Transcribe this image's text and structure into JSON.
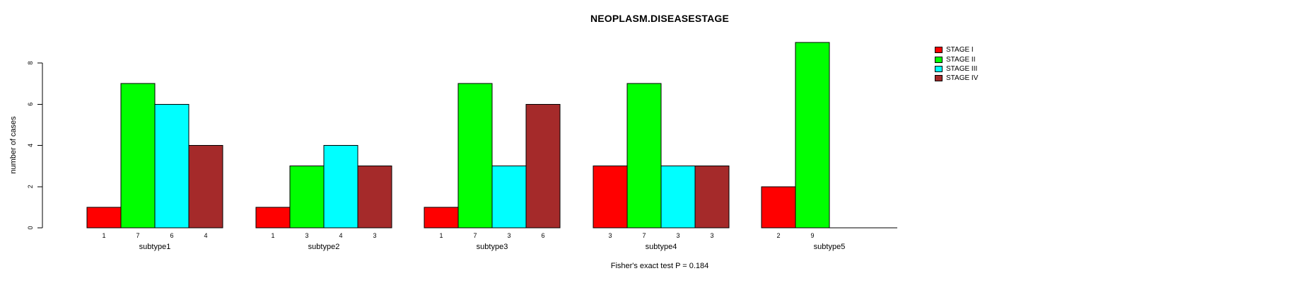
{
  "chart_data": {
    "type": "bar",
    "title": "NEOPLASM.DISEASESTAGE",
    "ylabel": "number of cases",
    "xlabel": "",
    "footnote": "Fisher's exact test P = 0.184",
    "categories": [
      "subtype1",
      "subtype2",
      "subtype3",
      "subtype4",
      "subtype5"
    ],
    "series": [
      {
        "name": "STAGE I",
        "color": "#FF0000",
        "values": [
          1,
          1,
          1,
          3,
          2
        ]
      },
      {
        "name": "STAGE II",
        "color": "#00FF00",
        "values": [
          7,
          3,
          7,
          7,
          9
        ]
      },
      {
        "name": "STAGE III",
        "color": "#00FFFF",
        "values": [
          6,
          4,
          3,
          3,
          0
        ]
      },
      {
        "name": "STAGE IV",
        "color": "#A52A2A",
        "values": [
          4,
          3,
          6,
          3,
          0
        ]
      }
    ],
    "bar_labels": [
      [
        "1",
        "7",
        "6",
        "4"
      ],
      [
        "1",
        "3",
        "4",
        "3"
      ],
      [
        "1",
        "7",
        "3",
        "6"
      ],
      [
        "3",
        "7",
        "3",
        "3"
      ],
      [
        "2",
        "9",
        "",
        ""
      ]
    ],
    "y_ticks": [
      0,
      2,
      4,
      6,
      8
    ],
    "ylim": [
      0,
      9
    ],
    "grid": false,
    "legend_position": "top-right",
    "bar_border_color": "#000000",
    "axis_color": "#000000",
    "background_color": "#FFFFFF"
  }
}
